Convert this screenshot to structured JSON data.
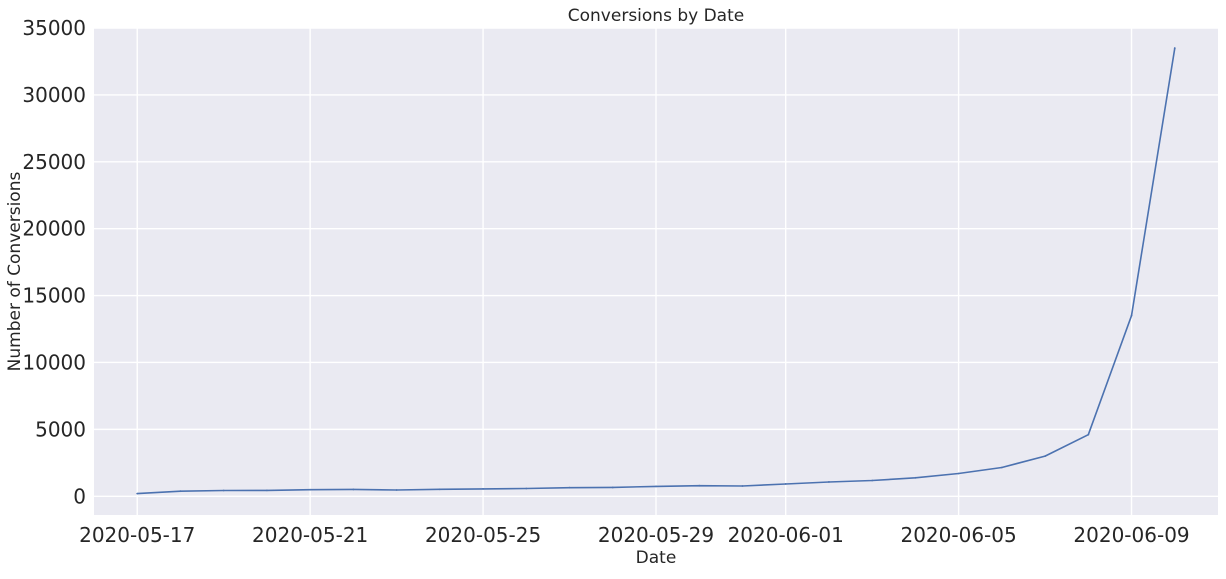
{
  "chart_data": {
    "type": "line",
    "title": "Conversions by Date",
    "xlabel": "Date",
    "ylabel": "Number of Conversions",
    "x_tick_labels": [
      "2020-05-17",
      "2020-05-21",
      "2020-05-25",
      "2020-05-29",
      "2020-06-01",
      "2020-06-05",
      "2020-06-09"
    ],
    "y_tick_labels": [
      "0",
      "5000",
      "10000",
      "15000",
      "20000",
      "25000",
      "30000",
      "35000"
    ],
    "ylim": [
      -1400,
      35000
    ],
    "xlim": [
      "2020-05-16",
      "2020-06-11"
    ],
    "grid": true,
    "colors": {
      "background": "#eaeaf2",
      "grid": "#ffffff",
      "line": "#4c72b0"
    },
    "series": [
      {
        "x": [
          "2020-05-17",
          "2020-05-18",
          "2020-05-19",
          "2020-05-20",
          "2020-05-21",
          "2020-05-22",
          "2020-05-23",
          "2020-05-24",
          "2020-05-25",
          "2020-05-26",
          "2020-05-27",
          "2020-05-28",
          "2020-05-29",
          "2020-05-30",
          "2020-05-31",
          "2020-06-01",
          "2020-06-02",
          "2020-06-03",
          "2020-06-04",
          "2020-06-05",
          "2020-06-06",
          "2020-06-07",
          "2020-06-08",
          "2020-06-09",
          "2020-06-10"
        ],
        "values": [
          200,
          380,
          430,
          440,
          490,
          510,
          470,
          520,
          550,
          580,
          640,
          660,
          740,
          790,
          770,
          920,
          1070,
          1180,
          1380,
          1700,
          2150,
          3000,
          4600,
          13500,
          33500
        ]
      }
    ]
  }
}
